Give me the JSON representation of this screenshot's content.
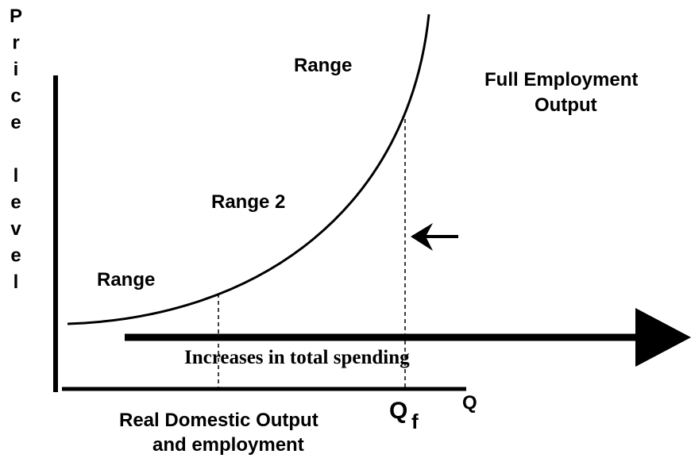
{
  "y_axis_label": "Price level",
  "labels": {
    "range_top": "Range",
    "full_employment": [
      "Full Employment",
      "Output"
    ],
    "range_2": "Range 2",
    "range_bottom": "Range"
  },
  "arrow_label": "Increases in total spending",
  "x_axis_label": [
    "Real Domestic Output",
    "and employment"
  ],
  "qf": {
    "main": "Q",
    "sub": "f"
  },
  "x_axis_end": "Q"
}
